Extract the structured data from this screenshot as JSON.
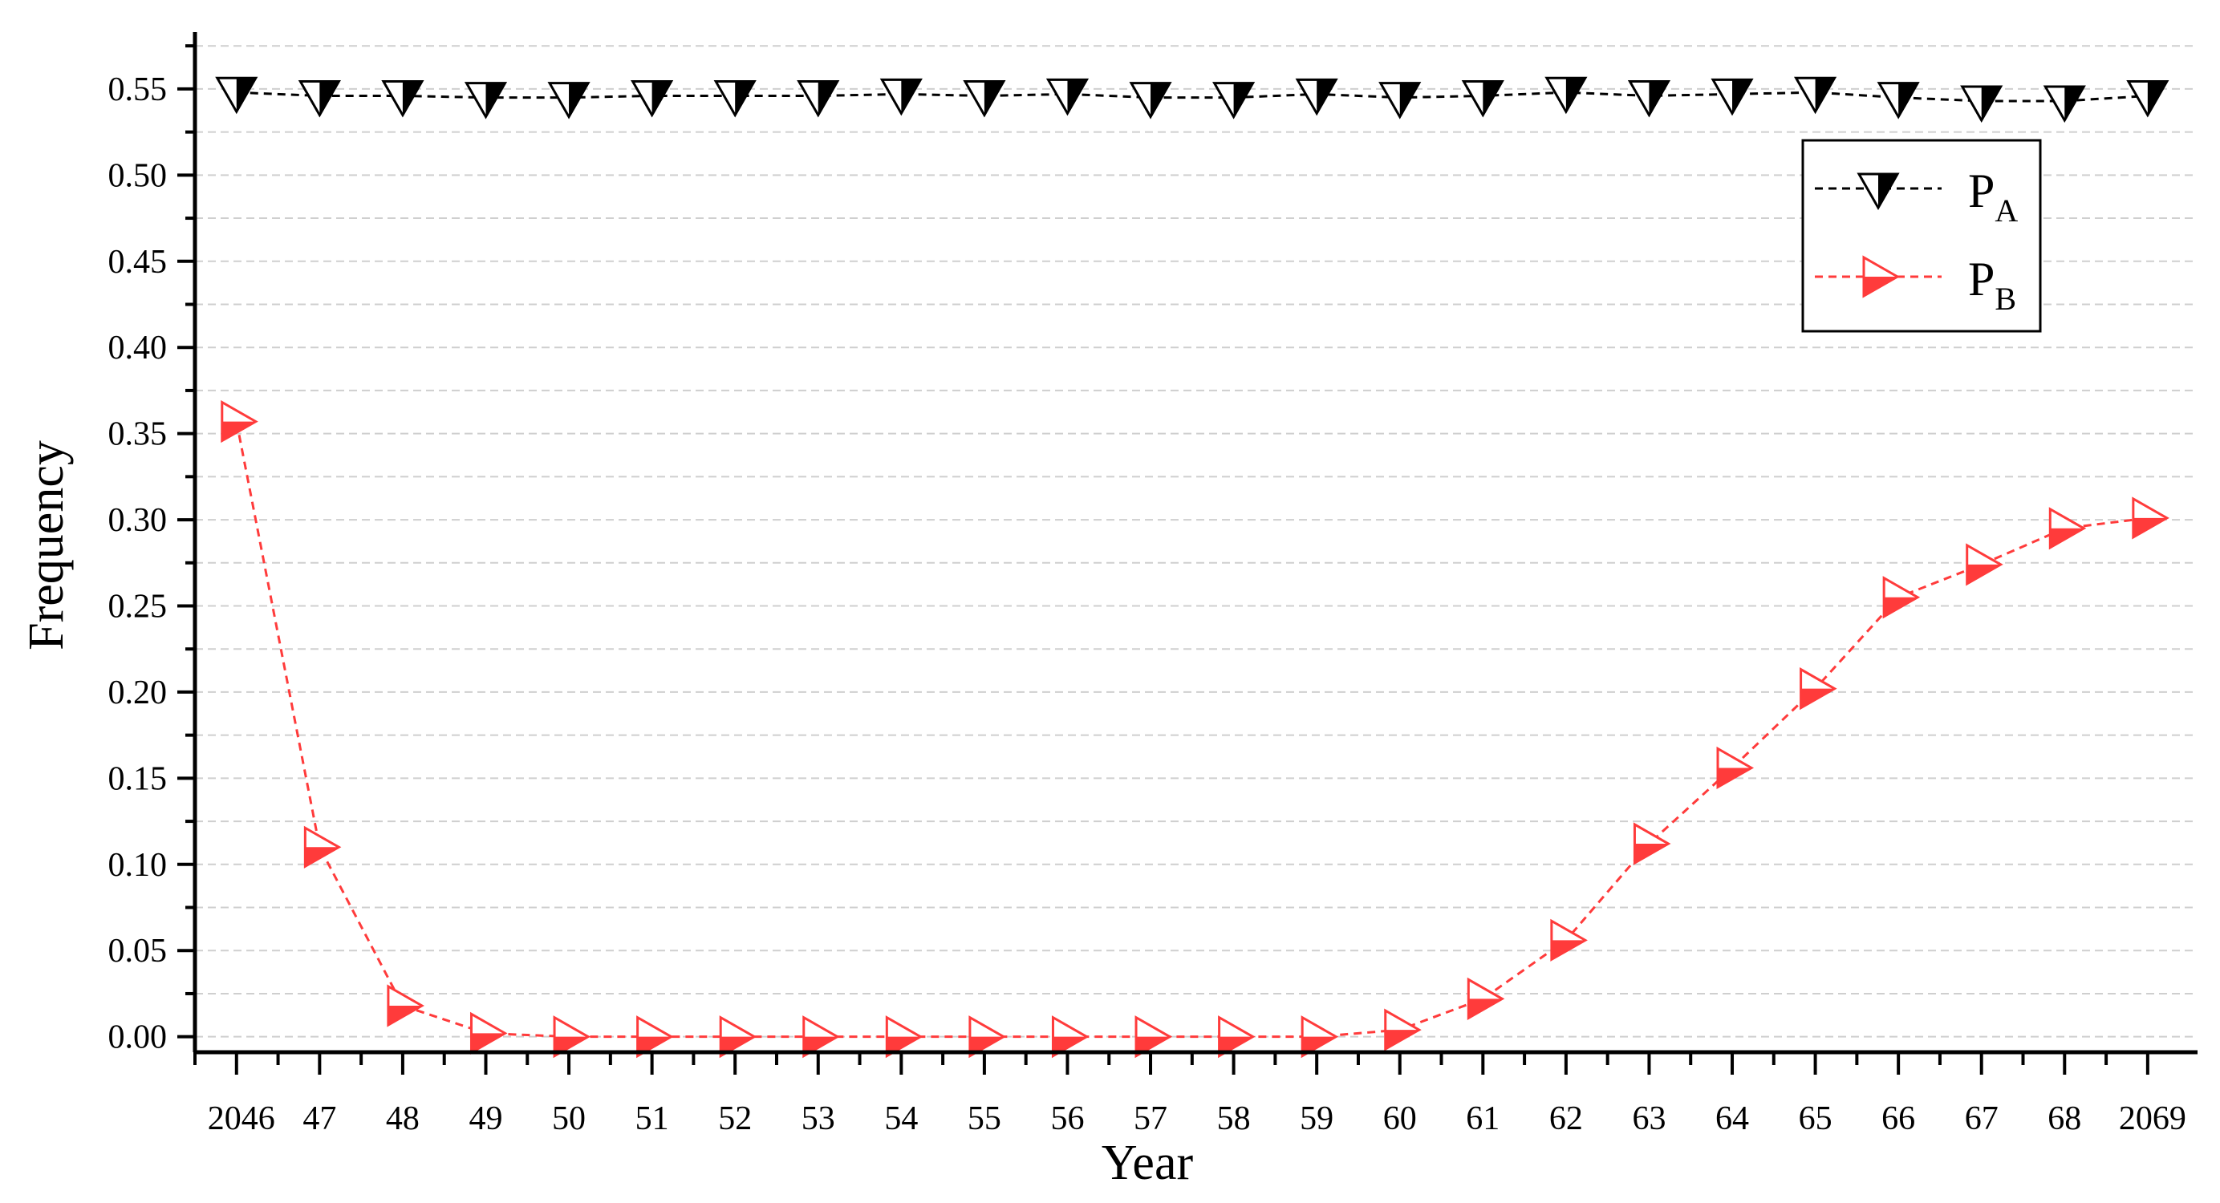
{
  "chart_data": {
    "type": "line",
    "title": "",
    "xlabel": "Year",
    "ylabel": "Frequency",
    "x": [
      "2046",
      "47",
      "48",
      "49",
      "50",
      "51",
      "52",
      "53",
      "54",
      "55",
      "56",
      "57",
      "58",
      "59",
      "60",
      "61",
      "62",
      "63",
      "64",
      "65",
      "66",
      "67",
      "68",
      "2069"
    ],
    "x_tick_labels": [
      "2046",
      "47",
      "48",
      "49",
      "50",
      "51",
      "52",
      "53",
      "54",
      "55",
      "56",
      "57",
      "58",
      "59",
      "60",
      "61",
      "62",
      "63",
      "64",
      "65",
      "66",
      "67",
      "68",
      "2069"
    ],
    "y_ticks": [
      "0.00",
      "0.05",
      "0.10",
      "0.15",
      "0.20",
      "0.25",
      "0.30",
      "0.35",
      "0.40",
      "0.45",
      "0.50",
      "0.55"
    ],
    "ylim": [
      -0.009,
      0.583
    ],
    "xlim": [
      2045.5,
      2069.6
    ],
    "grid": true,
    "legend_position": "top-right",
    "series": [
      {
        "name": "P_A",
        "legend_main": "P",
        "legend_sub": "A",
        "color": "#000000",
        "marker": "down-triangle",
        "values": [
          0.548,
          0.546,
          0.546,
          0.545,
          0.545,
          0.546,
          0.546,
          0.546,
          0.547,
          0.546,
          0.547,
          0.545,
          0.545,
          0.547,
          0.545,
          0.546,
          0.548,
          0.546,
          0.547,
          0.548,
          0.545,
          0.543,
          0.543,
          0.546
        ]
      },
      {
        "name": "P_B",
        "legend_main": "P",
        "legend_sub": "B",
        "color": "#ff3b3b",
        "marker": "right-triangle",
        "values": [
          0.357,
          0.11,
          0.018,
          0.002,
          0.0,
          0.0,
          0.0,
          0.0,
          0.0,
          0.0,
          0.0,
          0.0,
          0.0,
          0.0,
          0.004,
          0.022,
          0.056,
          0.112,
          0.156,
          0.202,
          0.255,
          0.274,
          0.295,
          0.301
        ]
      }
    ]
  }
}
